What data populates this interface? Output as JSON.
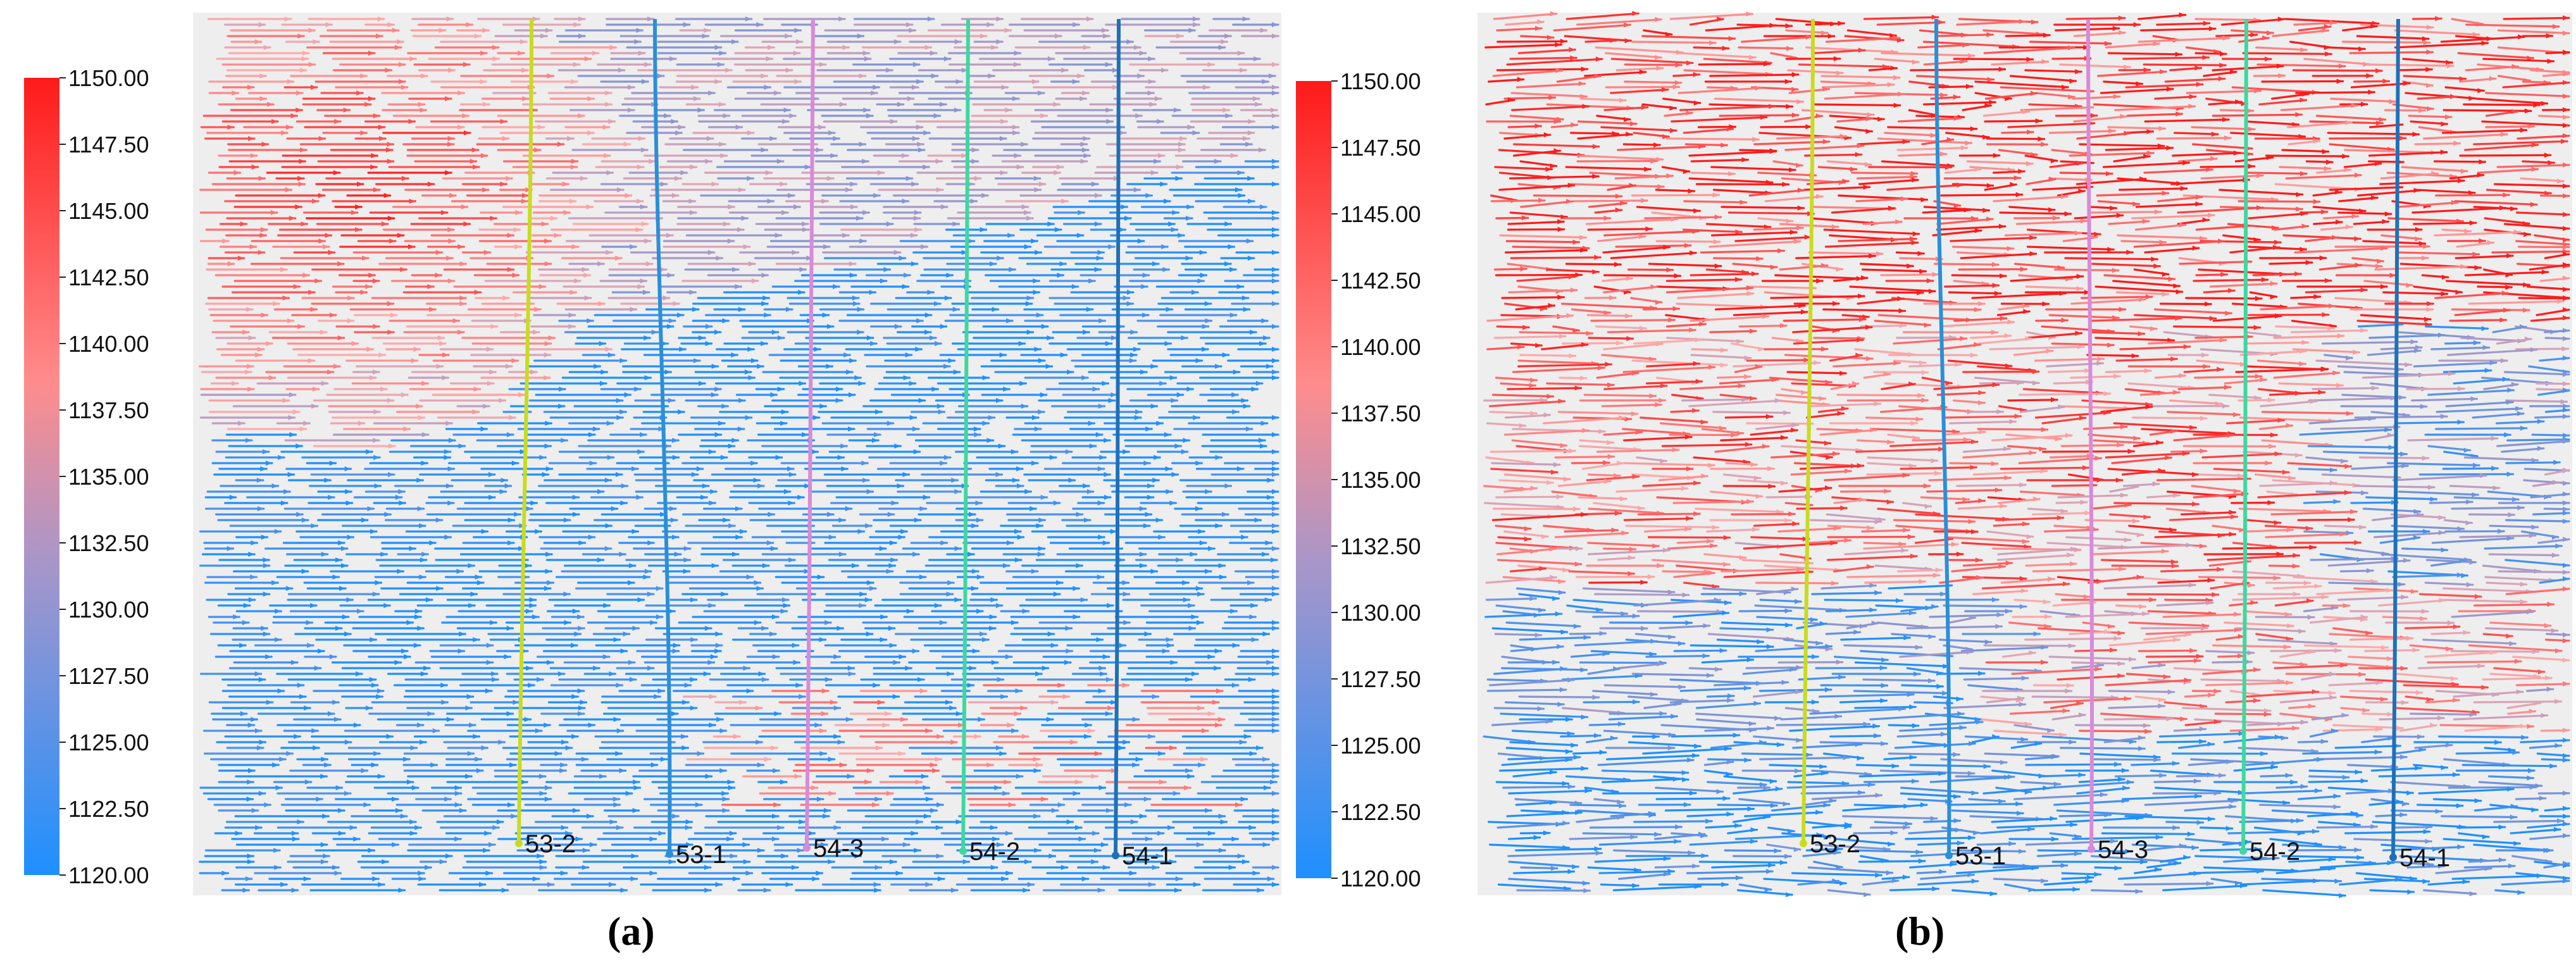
{
  "colorbar": {
    "max": 1150.0,
    "min": 1120.0,
    "ticks": [
      "1150.00",
      "1147.50",
      "1145.00",
      "1142.50",
      "1140.00",
      "1137.50",
      "1135.00",
      "1132.50",
      "1130.00",
      "1127.50",
      "1125.00",
      "1122.50",
      "1120.00"
    ],
    "colors": {
      "high": "#ff1a1a",
      "mid": "#ffaaaa",
      "low": "#1e90ff"
    }
  },
  "panels": [
    {
      "label": "(a)",
      "wells": [
        {
          "name": "53-2",
          "color": "#c8dc1e"
        },
        {
          "name": "53-1",
          "color": "#2a8fd8"
        },
        {
          "name": "54-3",
          "color": "#d88ad8"
        },
        {
          "name": "54-2",
          "color": "#3ed8a0"
        },
        {
          "name": "54-1",
          "color": "#1e70b8"
        }
      ]
    },
    {
      "label": "(b)",
      "wells": [
        {
          "name": "53-2",
          "color": "#c8dc1e"
        },
        {
          "name": "53-1",
          "color": "#2a8fd8"
        },
        {
          "name": "54-3",
          "color": "#d88ad8"
        },
        {
          "name": "54-2",
          "color": "#3ed8a0"
        },
        {
          "name": "54-1",
          "color": "#1e70b8"
        }
      ]
    }
  ]
}
